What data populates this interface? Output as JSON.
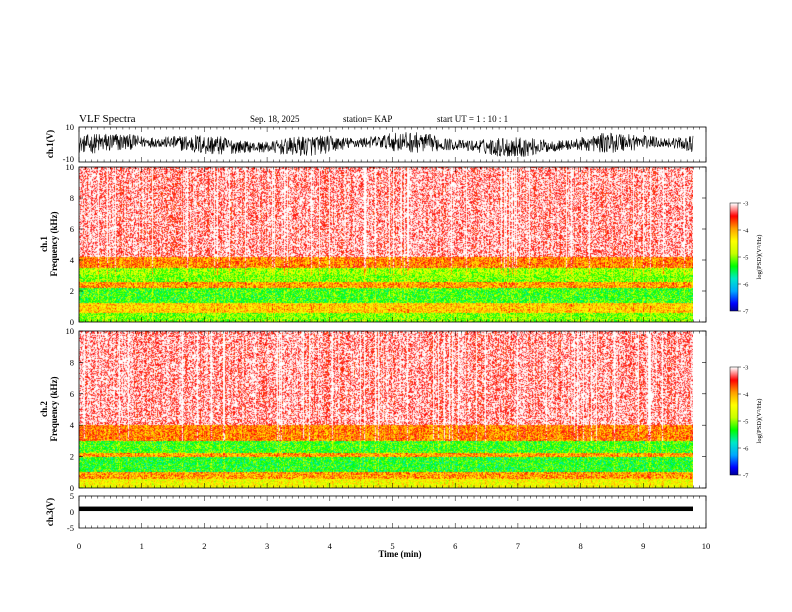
{
  "header": {
    "title": "VLF Spectra",
    "date": "Sep. 18, 2025",
    "station": "station= KAP",
    "start_ut": "start  UT =   1 : 10 : 1"
  },
  "colors": {
    "background": "#ffffff",
    "axis": "#000000",
    "trace": "#000000",
    "colormap": [
      "#000050",
      "#0000ff",
      "#00a8ff",
      "#00e8c8",
      "#00ff00",
      "#c8ff00",
      "#ffff00",
      "#ffa000",
      "#ff0000",
      "#ffffff"
    ]
  },
  "chart_data": [
    {
      "type": "line",
      "name": "ch1-waveform",
      "ylabel": "ch.1(V)",
      "ylim": [
        -10,
        10
      ],
      "yticks": [
        "10",
        "-10"
      ],
      "xlim": [
        0,
        10
      ],
      "description_values": {
        "mean_envelope_low": -6,
        "mean_envelope_high": 6
      }
    },
    {
      "type": "heatmap",
      "name": "ch1-spectrogram",
      "ylabel_line1": "ch.1",
      "ylabel_line2": "Frequency  (kHz)",
      "ylim": [
        0,
        10
      ],
      "yticks": [
        "0",
        "2",
        "4",
        "6",
        "8",
        "10"
      ],
      "xlim": [
        0,
        9.85
      ],
      "colorbar": {
        "label": "log(PSD)(V²/Hz)",
        "range": [
          -7,
          -3
        ],
        "ticks": [
          "-3",
          "-4",
          "-5",
          "-6",
          "-7"
        ]
      },
      "bands_khz": [
        {
          "from": 0,
          "to": 0.6,
          "level": -5.0
        },
        {
          "from": 0.6,
          "to": 1.2,
          "level": -4.2
        },
        {
          "from": 1.2,
          "to": 2.2,
          "level": -5.2
        },
        {
          "from": 2.2,
          "to": 2.6,
          "level": -4.0
        },
        {
          "from": 2.6,
          "to": 3.5,
          "level": -5.0
        },
        {
          "from": 3.5,
          "to": 4.2,
          "level": -4.0
        },
        {
          "from": 4.2,
          "to": 10,
          "level": -3.3
        }
      ]
    },
    {
      "type": "heatmap",
      "name": "ch2-spectrogram",
      "ylabel_line1": "ch.2",
      "ylabel_line2": "Frequency  (kHz)",
      "ylim": [
        0,
        10
      ],
      "yticks": [
        "0",
        "2",
        "4",
        "6",
        "8",
        "10"
      ],
      "xlim": [
        0,
        9.85
      ],
      "colorbar": {
        "label": "log(PSD)(V²/Hz)",
        "range": [
          -7,
          -3
        ],
        "ticks": [
          "-3",
          "-4",
          "-5",
          "-6",
          "-7"
        ]
      },
      "bands_khz": [
        {
          "from": 0,
          "to": 0.6,
          "level": -4.5
        },
        {
          "from": 0.6,
          "to": 1.0,
          "level": -4.0
        },
        {
          "from": 1.0,
          "to": 2.0,
          "level": -5.3
        },
        {
          "from": 2.0,
          "to": 2.2,
          "level": -4.0
        },
        {
          "from": 2.2,
          "to": 3.0,
          "level": -5.2
        },
        {
          "from": 3.0,
          "to": 4.0,
          "level": -4.0
        },
        {
          "from": 4.0,
          "to": 10,
          "level": -3.3
        }
      ]
    },
    {
      "type": "line",
      "name": "ch3-waveform",
      "ylabel": "ch.3(V)",
      "ylim": [
        -5,
        5
      ],
      "yticks": [
        "5",
        "0",
        "-5"
      ],
      "xlim": [
        0,
        10
      ],
      "description_values": {
        "band_low": 0.3,
        "band_high": 1.7
      }
    }
  ],
  "xaxis": {
    "label": "Time  (min)",
    "range": [
      0,
      10
    ],
    "ticks": [
      "0",
      "1",
      "2",
      "3",
      "4",
      "5",
      "6",
      "7",
      "8",
      "9",
      "10"
    ]
  }
}
